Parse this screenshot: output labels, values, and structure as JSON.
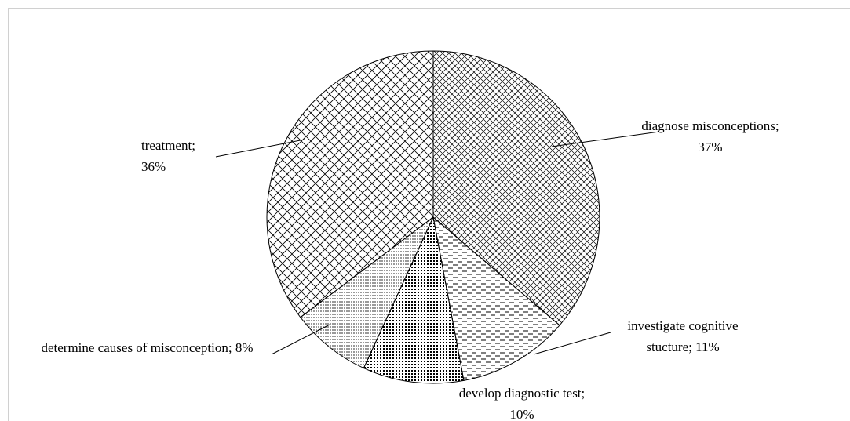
{
  "chart_data": {
    "type": "pie",
    "categories": [
      "diagnose misconceptions;",
      "investigate cognitive stucture;",
      "develop diagnostic test;",
      "determine causes of misconception;",
      "treatment;"
    ],
    "values": [
      37,
      11,
      10,
      8,
      36
    ],
    "value_labels": [
      "37%",
      "11%",
      "10%",
      "8%",
      "36%"
    ]
  }
}
